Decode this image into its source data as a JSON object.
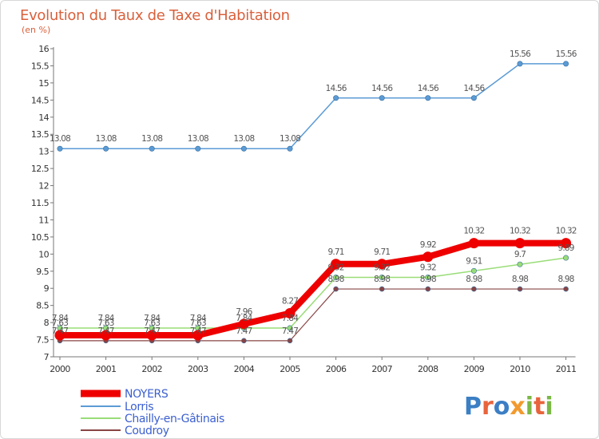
{
  "chart_data": {
    "type": "line",
    "title": "Evolution du Taux de Taxe d'Habitation",
    "subtitle": "(en %)",
    "x": [
      "2000",
      "2001",
      "2002",
      "2003",
      "2004",
      "2005",
      "2006",
      "2007",
      "2008",
      "2009",
      "2010",
      "2011"
    ],
    "ylim": [
      7,
      16
    ],
    "yticks": [
      "7",
      "7.5",
      "8",
      "8.5",
      "9",
      "9.5",
      "10",
      "10.5",
      "11",
      "11.5",
      "12",
      "12.5",
      "13",
      "13.5",
      "14",
      "14.5",
      "15",
      "15.5",
      "16"
    ],
    "grid": false,
    "legend_position": "bottom-left",
    "series": [
      {
        "name": "NOYERS",
        "color": "#ee0000",
        "values": [
          7.63,
          7.63,
          7.63,
          7.63,
          7.96,
          8.27,
          9.71,
          9.71,
          9.92,
          10.32,
          10.32,
          10.32
        ],
        "labels": [
          "7.63",
          "7.63",
          "7.63",
          "7.63",
          "7.96",
          "8.27",
          "9.71",
          "9.71",
          "9.92",
          "10.32",
          "10.32",
          "10.32"
        ]
      },
      {
        "name": "Lorris",
        "color": "#5b9bd5",
        "values": [
          13.08,
          13.08,
          13.08,
          13.08,
          13.08,
          13.08,
          14.56,
          14.56,
          14.56,
          14.56,
          15.56,
          15.56
        ],
        "labels": [
          "13.08",
          "13.08",
          "13.08",
          "13.08",
          "13.08",
          "13.08",
          "14.56",
          "14.56",
          "14.56",
          "14.56",
          "15.56",
          "15.56"
        ]
      },
      {
        "name": "Chailly-en-Gâtinais",
        "color": "#99dd77",
        "values": [
          7.84,
          7.84,
          7.84,
          7.84,
          7.84,
          7.84,
          9.32,
          9.32,
          9.32,
          9.51,
          9.7,
          9.89
        ],
        "labels": [
          "7.84",
          "7.84",
          "7.84",
          "7.84",
          "7.84",
          "7.84",
          "9.32",
          "9.32",
          "9.32",
          "9.51",
          "9.7",
          "9.89"
        ]
      },
      {
        "name": "Coudroy",
        "color": "#884444",
        "values": [
          7.47,
          7.47,
          7.47,
          7.47,
          7.47,
          7.47,
          8.98,
          8.98,
          8.98,
          8.98,
          8.98,
          8.98
        ],
        "labels": [
          "7.47",
          "7.47",
          "7.47",
          "7.47",
          "7.47",
          "7.47",
          "8.98",
          "8.98",
          "8.98",
          "8.98",
          "8.98",
          "8.98"
        ]
      }
    ]
  },
  "branding": {
    "logo_text": "Proxiti"
  }
}
